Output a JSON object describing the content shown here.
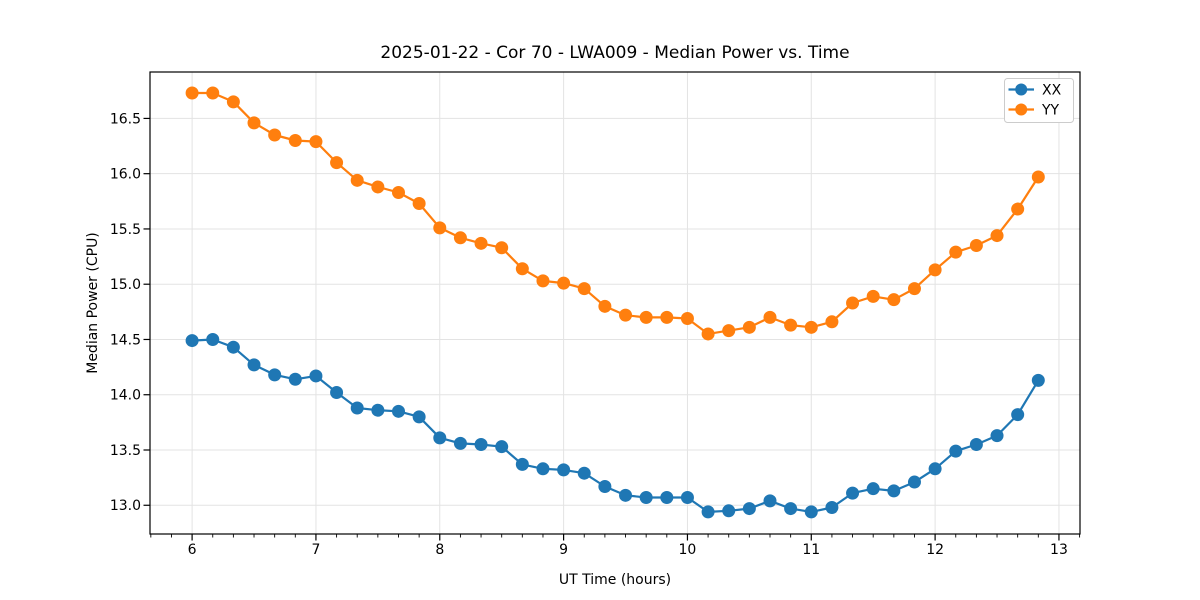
{
  "figure": {
    "background": "#ffffff"
  },
  "chart_data": {
    "type": "line",
    "title": "2025-01-22 - Cor 70 - LWA009 - Median Power vs. Time",
    "xlabel": "UT Time (hours)",
    "ylabel": "Median Power (CPU)",
    "xlim": [
      5.66,
      13.17
    ],
    "ylim": [
      12.74,
      16.92
    ],
    "xticks": [
      6,
      7,
      8,
      9,
      10,
      11,
      12,
      13
    ],
    "yticks": [
      13.0,
      13.5,
      14.0,
      14.5,
      15.0,
      15.5,
      16.0,
      16.5
    ],
    "x_minor_per_major": 6,
    "grid": true,
    "grid_color": "#e3e3e3",
    "background_color": "#ffffff",
    "spine_color": "#000000",
    "legend_position": "upper right",
    "marker": "circle",
    "x": [
      6.0,
      6.1667,
      6.3333,
      6.5,
      6.6667,
      6.8333,
      7.0,
      7.1667,
      7.3333,
      7.5,
      7.6667,
      7.8333,
      8.0,
      8.1667,
      8.3333,
      8.5,
      8.6667,
      8.8333,
      9.0,
      9.1667,
      9.3333,
      9.5,
      9.6667,
      9.8333,
      10.0,
      10.1667,
      10.3333,
      10.5,
      10.6667,
      10.8333,
      11.0,
      11.1667,
      11.3333,
      11.5,
      11.6667,
      11.8333,
      12.0,
      12.1667,
      12.3333,
      12.5,
      12.6667,
      12.8333
    ],
    "series": [
      {
        "name": "XX",
        "color": "#1f77b4",
        "values": [
          14.49,
          14.5,
          14.43,
          14.27,
          14.18,
          14.14,
          14.17,
          14.02,
          13.88,
          13.86,
          13.85,
          13.8,
          13.61,
          13.56,
          13.55,
          13.53,
          13.37,
          13.33,
          13.32,
          13.29,
          13.17,
          13.09,
          13.07,
          13.07,
          13.07,
          12.94,
          12.95,
          12.97,
          13.04,
          12.97,
          12.94,
          12.98,
          13.11,
          13.15,
          13.13,
          13.21,
          13.33,
          13.49,
          13.55,
          13.63,
          13.82,
          14.13
        ]
      },
      {
        "name": "YY",
        "color": "#ff7f0e",
        "values": [
          16.73,
          16.73,
          16.65,
          16.46,
          16.35,
          16.3,
          16.29,
          16.1,
          15.94,
          15.88,
          15.83,
          15.73,
          15.51,
          15.42,
          15.37,
          15.33,
          15.14,
          15.03,
          15.01,
          14.96,
          14.8,
          14.72,
          14.7,
          14.7,
          14.69,
          14.55,
          14.58,
          14.61,
          14.7,
          14.63,
          14.61,
          14.66,
          14.83,
          14.89,
          14.86,
          14.96,
          15.13,
          15.29,
          15.35,
          15.44,
          15.68,
          15.97
        ]
      }
    ]
  }
}
